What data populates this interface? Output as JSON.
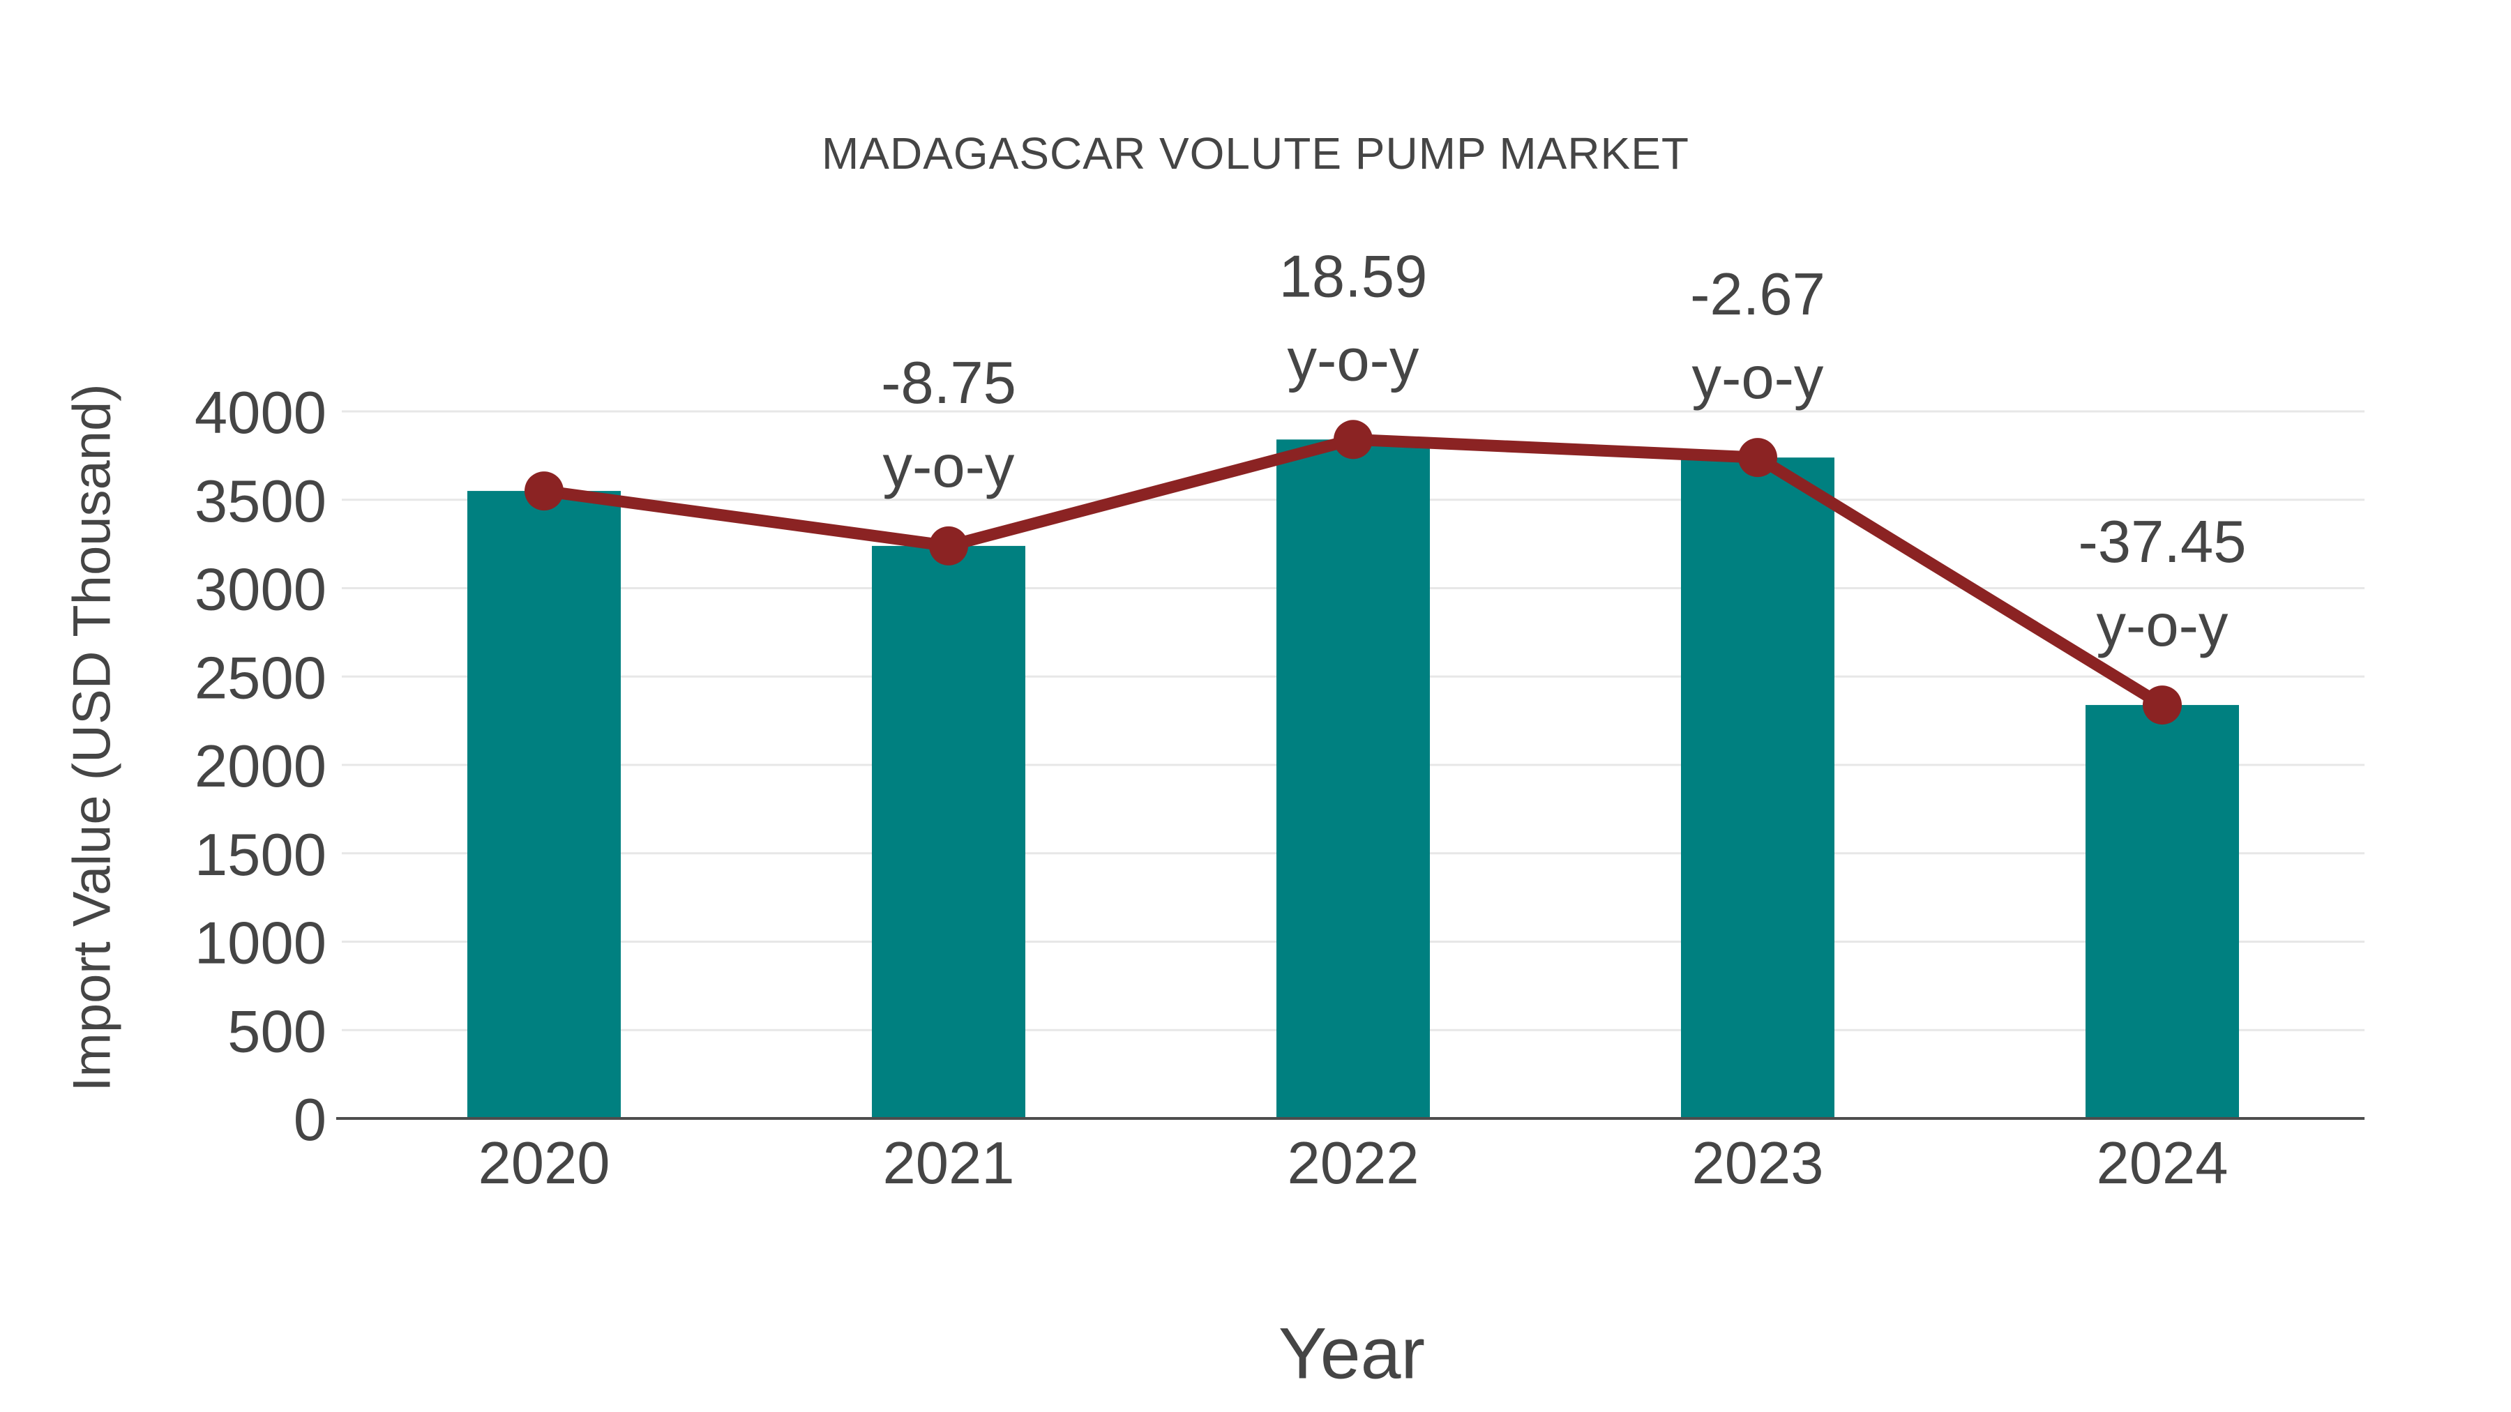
{
  "chart_data": {
    "type": "bar+line",
    "title": "MADAGASCAR VOLUTE PUMP MARKET",
    "xlabel": "Year",
    "ylabel": "Import Value (USD Thousand)",
    "categories": [
      "2020",
      "2021",
      "2022",
      "2023",
      "2024"
    ],
    "series": [
      {
        "name": "import-value-bars",
        "type": "bar",
        "color": "#008080",
        "values": [
          3550,
          3239,
          3841,
          3739,
          2339
        ]
      },
      {
        "name": "import-value-trend",
        "type": "line",
        "color": "#8B2323",
        "values": [
          3550,
          3239,
          3841,
          3739,
          2339
        ]
      }
    ],
    "annotations": [
      {
        "category": "2021",
        "line1": "-8.75",
        "line2": "y-o-y"
      },
      {
        "category": "2022",
        "line1": "18.59",
        "line2": "y-o-y"
      },
      {
        "category": "2023",
        "line1": "-2.67",
        "line2": "y-o-y"
      },
      {
        "category": "2024",
        "line1": "-37.45",
        "line2": "y-o-y"
      }
    ],
    "yticks": [
      0,
      500,
      1000,
      1500,
      2000,
      2500,
      3000,
      3500,
      4000
    ],
    "ylim": [
      0,
      4000
    ],
    "grid": true,
    "legend_position": "none",
    "colors": {
      "bar": "#008080",
      "line": "#8B2323",
      "text": "#454545",
      "grid": "#e7e7e7",
      "axis": "#4d4d4d",
      "background": "#ffffff"
    }
  }
}
